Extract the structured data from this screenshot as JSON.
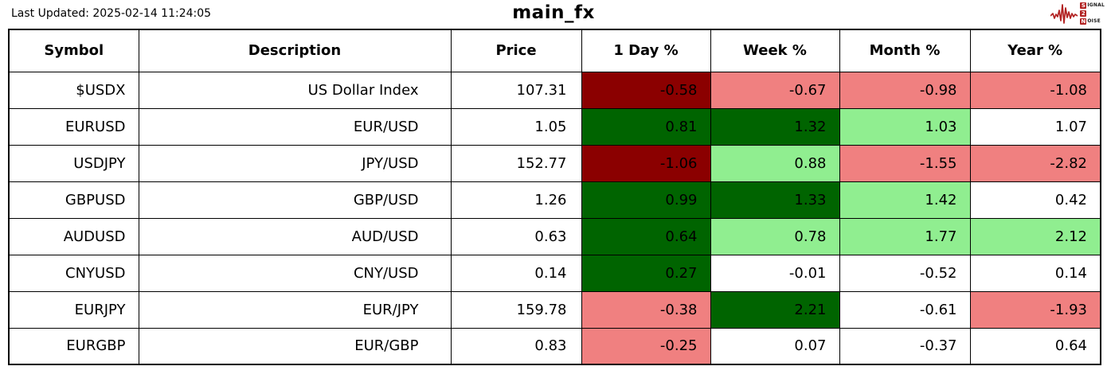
{
  "header": {
    "last_updated": "Last Updated: 2025-02-14 11:24:05",
    "title": "main_fx",
    "logo": {
      "line1_badge": "S",
      "line1_rest": "IGNAL",
      "line2_badge": "2",
      "line3_badge": "N",
      "line3_rest": "OISE",
      "accent": "#B22222"
    }
  },
  "colors": {
    "darkred": "#8B0000",
    "lightcoral": "#F08080",
    "darkgreen": "#006400",
    "lightgreen": "#90EE90",
    "white": "#FFFFFF"
  },
  "table": {
    "columns": [
      "Symbol",
      "Description",
      "Price",
      "1 Day %",
      "Week %",
      "Month %",
      "Year %"
    ],
    "rows": [
      {
        "symbol": "$USDX",
        "description": "US Dollar Index",
        "price": "107.31",
        "pcts": [
          {
            "value": "-0.58",
            "color": "darkred"
          },
          {
            "value": "-0.67",
            "color": "lightcoral"
          },
          {
            "value": "-0.98",
            "color": "lightcoral"
          },
          {
            "value": "-1.08",
            "color": "lightcoral"
          }
        ]
      },
      {
        "symbol": "EURUSD",
        "description": "EUR/USD",
        "price": "1.05",
        "pcts": [
          {
            "value": "0.81",
            "color": "darkgreen"
          },
          {
            "value": "1.32",
            "color": "darkgreen"
          },
          {
            "value": "1.03",
            "color": "lightgreen"
          },
          {
            "value": "1.07",
            "color": "white"
          }
        ]
      },
      {
        "symbol": "USDJPY",
        "description": "JPY/USD",
        "price": "152.77",
        "pcts": [
          {
            "value": "-1.06",
            "color": "darkred"
          },
          {
            "value": "0.88",
            "color": "lightgreen"
          },
          {
            "value": "-1.55",
            "color": "lightcoral"
          },
          {
            "value": "-2.82",
            "color": "lightcoral"
          }
        ]
      },
      {
        "symbol": "GBPUSD",
        "description": "GBP/USD",
        "price": "1.26",
        "pcts": [
          {
            "value": "0.99",
            "color": "darkgreen"
          },
          {
            "value": "1.33",
            "color": "darkgreen"
          },
          {
            "value": "1.42",
            "color": "lightgreen"
          },
          {
            "value": "0.42",
            "color": "white"
          }
        ]
      },
      {
        "symbol": "AUDUSD",
        "description": "AUD/USD",
        "price": "0.63",
        "pcts": [
          {
            "value": "0.64",
            "color": "darkgreen"
          },
          {
            "value": "0.78",
            "color": "lightgreen"
          },
          {
            "value": "1.77",
            "color": "lightgreen"
          },
          {
            "value": "2.12",
            "color": "lightgreen"
          }
        ]
      },
      {
        "symbol": "CNYUSD",
        "description": "CNY/USD",
        "price": "0.14",
        "pcts": [
          {
            "value": "0.27",
            "color": "darkgreen"
          },
          {
            "value": "-0.01",
            "color": "white"
          },
          {
            "value": "-0.52",
            "color": "white"
          },
          {
            "value": "0.14",
            "color": "white"
          }
        ]
      },
      {
        "symbol": "EURJPY",
        "description": "EUR/JPY",
        "price": "159.78",
        "pcts": [
          {
            "value": "-0.38",
            "color": "lightcoral"
          },
          {
            "value": "2.21",
            "color": "darkgreen"
          },
          {
            "value": "-0.61",
            "color": "white"
          },
          {
            "value": "-1.93",
            "color": "lightcoral"
          }
        ]
      },
      {
        "symbol": "EURGBP",
        "description": "EUR/GBP",
        "price": "0.83",
        "pcts": [
          {
            "value": "-0.25",
            "color": "lightcoral"
          },
          {
            "value": "0.07",
            "color": "white"
          },
          {
            "value": "-0.37",
            "color": "white"
          },
          {
            "value": "0.64",
            "color": "white"
          }
        ]
      }
    ]
  },
  "chart_data": {
    "type": "table",
    "title": "main_fx",
    "columns": [
      "Symbol",
      "Description",
      "Price",
      "1 Day %",
      "Week %",
      "Month %",
      "Year %"
    ],
    "rows": [
      [
        "$USDX",
        "US Dollar Index",
        107.31,
        -0.58,
        -0.67,
        -0.98,
        -1.08
      ],
      [
        "EURUSD",
        "EUR/USD",
        1.05,
        0.81,
        1.32,
        1.03,
        1.07
      ],
      [
        "USDJPY",
        "JPY/USD",
        152.77,
        -1.06,
        0.88,
        -1.55,
        -2.82
      ],
      [
        "GBPUSD",
        "GBP/USD",
        1.26,
        0.99,
        1.33,
        1.42,
        0.42
      ],
      [
        "AUDUSD",
        "AUD/USD",
        0.63,
        0.64,
        0.78,
        1.77,
        2.12
      ],
      [
        "CNYUSD",
        "CNY/USD",
        0.14,
        0.27,
        -0.01,
        -0.52,
        0.14
      ],
      [
        "EURJPY",
        "EUR/JPY",
        159.78,
        -0.38,
        2.21,
        -0.61,
        -1.93
      ],
      [
        "EURGBP",
        "EUR/GBP",
        0.83,
        -0.25,
        0.07,
        -0.37,
        0.64
      ]
    ],
    "color_coding": "positive strong=#006400, positive mild=#90EE90, negative strong=#8B0000, negative mild=#F08080, neutral=#FFFFFF"
  }
}
